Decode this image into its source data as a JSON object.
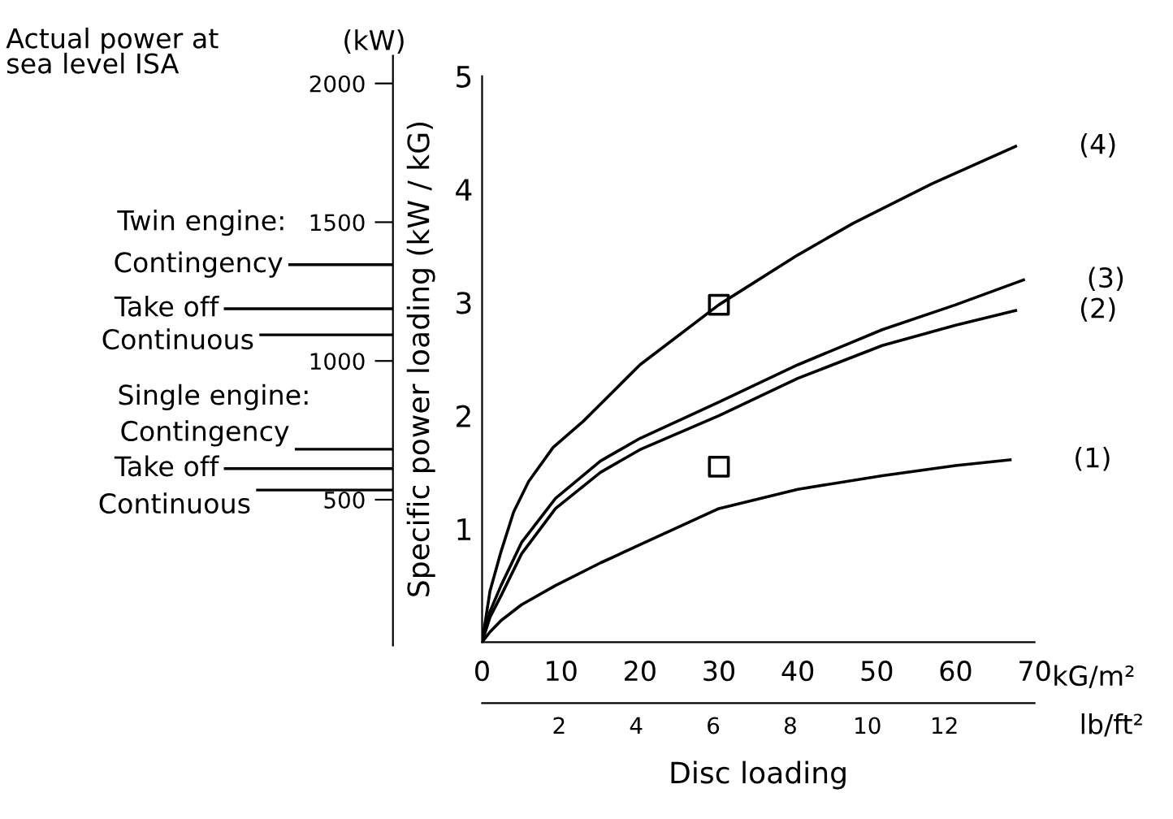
{
  "chart_data": {
    "type": "line",
    "xlabel": "Disc loading",
    "ylabel": "Specific power loading (kW / kG)",
    "y2label": "(kW)",
    "x2label": "lb/ft²",
    "xlim": [
      0,
      70
    ],
    "xticks": [
      0,
      10,
      20,
      30,
      40,
      50,
      60,
      70
    ],
    "ylim": [
      0,
      5
    ],
    "yticks": [
      1,
      2,
      3,
      4,
      5
    ],
    "x2lim": [
      0,
      14.34
    ],
    "x2ticks": [
      2,
      4,
      6,
      8,
      10,
      12
    ],
    "y2lim": [
      -25,
      2100
    ],
    "y2ticks": [
      500,
      1000,
      1500,
      2000
    ],
    "marker": "none",
    "line_style": "solid",
    "grid": false,
    "legend": false,
    "series": [
      {
        "name": "(1)",
        "color": "#000000",
        "x": [
          0,
          1,
          2.4,
          5,
          9.3,
          15,
          20,
          30,
          40,
          50.7,
          60,
          66.9
        ],
        "values": [
          0,
          0.09,
          0.19,
          0.33,
          0.5,
          0.7,
          0.86,
          1.18,
          1.35,
          1.47,
          1.56,
          1.61
        ]
      },
      {
        "name": "(2)",
        "color": "#000000",
        "x": [
          0,
          1,
          2.4,
          5,
          9.3,
          15,
          20,
          30,
          40,
          50.7,
          60,
          67.6
        ],
        "values": [
          0,
          0.22,
          0.41,
          0.78,
          1.18,
          1.5,
          1.7,
          2.0,
          2.33,
          2.62,
          2.8,
          2.93
        ]
      },
      {
        "name": "(3)",
        "color": "#000000",
        "x": [
          0,
          1,
          2.4,
          5,
          9.3,
          15,
          20,
          30,
          40,
          50.7,
          60,
          68.6
        ],
        "values": [
          0,
          0.27,
          0.5,
          0.88,
          1.27,
          1.6,
          1.8,
          2.12,
          2.45,
          2.76,
          2.98,
          3.2
        ]
      },
      {
        "name": "(4)",
        "color": "#000000",
        "x": [
          0,
          1,
          2.4,
          4,
          5.9,
          9,
          12.8,
          20,
          30,
          40,
          47,
          57,
          67.6
        ],
        "values": [
          0,
          0.45,
          0.8,
          1.15,
          1.42,
          1.72,
          1.95,
          2.45,
          2.98,
          3.42,
          3.7,
          4.05,
          4.38
        ]
      },
      {
        "type": "scatter",
        "marker": "square",
        "color": "#000000",
        "x": [
          30,
          30
        ],
        "values": [
          2.98,
          1.55
        ]
      }
    ],
    "ref_lines": [
      {
        "axis": "y2",
        "value": 1347,
        "label": "Contingency"
      },
      {
        "axis": "y2",
        "value": 1188,
        "label": "Take off"
      },
      {
        "axis": "y2",
        "value": 1094,
        "label": "Continuous"
      },
      {
        "axis": "y2",
        "value": 682,
        "label": "Contingency"
      },
      {
        "axis": "y2",
        "value": 612,
        "label": "Take off"
      },
      {
        "axis": "y2",
        "value": 535,
        "label": "Continuous"
      }
    ],
    "annotations": [
      "Actual power at\nsea level ISA",
      "Twin engine:",
      "Single engine:",
      "kG/m²"
    ]
  }
}
